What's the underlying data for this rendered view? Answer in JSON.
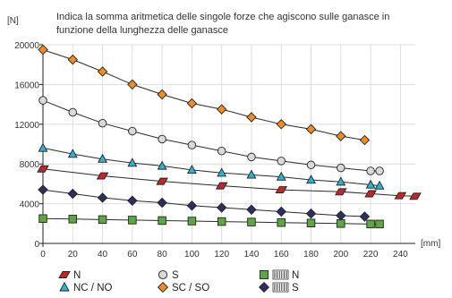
{
  "chart_data": {
    "type": "line",
    "title_lines": [
      "Indica la somma aritmetica delle singole forze che agiscono sulle ganasce in",
      "funzione della lunghezza delle ganasce"
    ],
    "ylabel": "[N]",
    "xlabel": "[mm]",
    "xlim": [
      0,
      250
    ],
    "ylim": [
      0,
      20000
    ],
    "x_ticks": [
      0,
      20,
      40,
      60,
      80,
      100,
      120,
      140,
      160,
      180,
      200,
      220,
      240
    ],
    "y_ticks": [
      0,
      4000,
      8000,
      12000,
      16000,
      20000
    ],
    "y_tick_labels": [
      "0",
      "4000",
      "8000",
      "12000",
      "16000",
      "20000"
    ],
    "grid": true,
    "legend_position": "bottom",
    "series": [
      {
        "key": "n",
        "name": "N",
        "marker": "parallelogram",
        "color": "#c0272d",
        "points": [
          [
            0,
            7500
          ],
          [
            40,
            6800
          ],
          [
            80,
            6250
          ],
          [
            120,
            5800
          ],
          [
            160,
            5400
          ],
          [
            200,
            5200
          ],
          [
            220,
            5000
          ],
          [
            240,
            4800
          ],
          [
            250,
            4750
          ]
        ]
      },
      {
        "key": "s",
        "name": "S",
        "marker": "circle",
        "color": "#d9d9d9",
        "points": [
          [
            0,
            14400
          ],
          [
            20,
            13200
          ],
          [
            40,
            12100
          ],
          [
            60,
            11300
          ],
          [
            80,
            10500
          ],
          [
            100,
            9900
          ],
          [
            120,
            9300
          ],
          [
            140,
            8700
          ],
          [
            160,
            8300
          ],
          [
            180,
            7900
          ],
          [
            200,
            7600
          ],
          [
            220,
            7300
          ],
          [
            226,
            7300
          ]
        ]
      },
      {
        "key": "nw",
        "name": "N",
        "prefix": "HW",
        "marker": "square",
        "color": "#5ca744",
        "points": [
          [
            0,
            2500
          ],
          [
            20,
            2450
          ],
          [
            40,
            2400
          ],
          [
            60,
            2350
          ],
          [
            80,
            2300
          ],
          [
            100,
            2250
          ],
          [
            120,
            2200
          ],
          [
            140,
            2150
          ],
          [
            160,
            2100
          ],
          [
            180,
            2050
          ],
          [
            200,
            2000
          ],
          [
            220,
            1950
          ],
          [
            226,
            1950
          ]
        ]
      },
      {
        "key": "nc",
        "name": "NC / NO",
        "marker": "triangle",
        "color": "#2bb3d6",
        "points": [
          [
            0,
            9600
          ],
          [
            20,
            9000
          ],
          [
            40,
            8500
          ],
          [
            60,
            8100
          ],
          [
            80,
            7800
          ],
          [
            100,
            7400
          ],
          [
            120,
            7100
          ],
          [
            140,
            6900
          ],
          [
            160,
            6700
          ],
          [
            180,
            6400
          ],
          [
            200,
            6200
          ],
          [
            220,
            5900
          ],
          [
            226,
            5800
          ]
        ]
      },
      {
        "key": "sc",
        "name": "SC / SO",
        "marker": "diamond",
        "color": "#f28c1e",
        "points": [
          [
            0,
            19500
          ],
          [
            20,
            18500
          ],
          [
            40,
            17300
          ],
          [
            60,
            16000
          ],
          [
            80,
            15000
          ],
          [
            100,
            14100
          ],
          [
            120,
            13500
          ],
          [
            140,
            12700
          ],
          [
            160,
            12000
          ],
          [
            180,
            11500
          ],
          [
            200,
            10800
          ],
          [
            216,
            10400
          ]
        ]
      },
      {
        "key": "sw",
        "name": "S",
        "prefix": "HW",
        "marker": "diamond",
        "color": "#2f2f5f",
        "points": [
          [
            0,
            5400
          ],
          [
            20,
            5000
          ],
          [
            40,
            4600
          ],
          [
            60,
            4300
          ],
          [
            80,
            4100
          ],
          [
            100,
            3800
          ],
          [
            120,
            3600
          ],
          [
            140,
            3400
          ],
          [
            160,
            3200
          ],
          [
            180,
            3000
          ],
          [
            200,
            2800
          ],
          [
            216,
            2700
          ]
        ]
      }
    ]
  }
}
